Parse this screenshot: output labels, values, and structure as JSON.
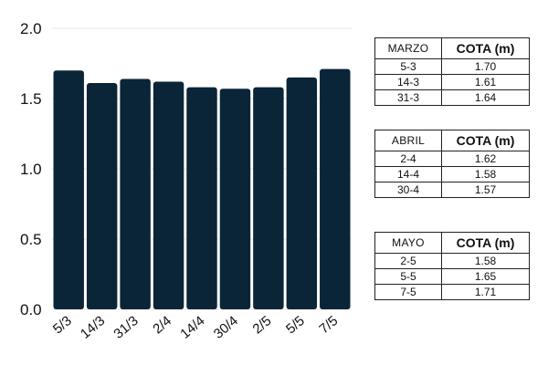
{
  "chart_data": {
    "type": "bar",
    "categories": [
      "5/3",
      "14/3",
      "31/3",
      "2/4",
      "14/4",
      "30/4",
      "2/5",
      "5/5",
      "7/5"
    ],
    "values": [
      1.7,
      1.61,
      1.64,
      1.62,
      1.58,
      1.57,
      1.58,
      1.65,
      1.71
    ],
    "ylim": [
      0,
      2.0
    ],
    "yticks": [
      "0.0",
      "0.5",
      "1.0",
      "1.5",
      "2.0"
    ],
    "grid": "horizontal",
    "colors": {
      "bar": "#0a2538",
      "grid": "#e6e6e6"
    }
  },
  "tables": [
    {
      "month": "MARZO",
      "header": "COTA (m)",
      "rows": [
        {
          "date": "5-3",
          "value": "1.70"
        },
        {
          "date": "14-3",
          "value": "1.61"
        },
        {
          "date": "31-3",
          "value": "1.64"
        }
      ]
    },
    {
      "month": "ABRIL",
      "header": "COTA (m)",
      "rows": [
        {
          "date": "2-4",
          "value": "1.62"
        },
        {
          "date": "14-4",
          "value": "1.58"
        },
        {
          "date": "30-4",
          "value": "1.57"
        }
      ]
    },
    {
      "month": "MAYO",
      "header": "COTA (m)",
      "rows": [
        {
          "date": "2-5",
          "value": "1.58"
        },
        {
          "date": "5-5",
          "value": "1.65"
        },
        {
          "date": "7-5",
          "value": "1.71"
        }
      ]
    }
  ]
}
